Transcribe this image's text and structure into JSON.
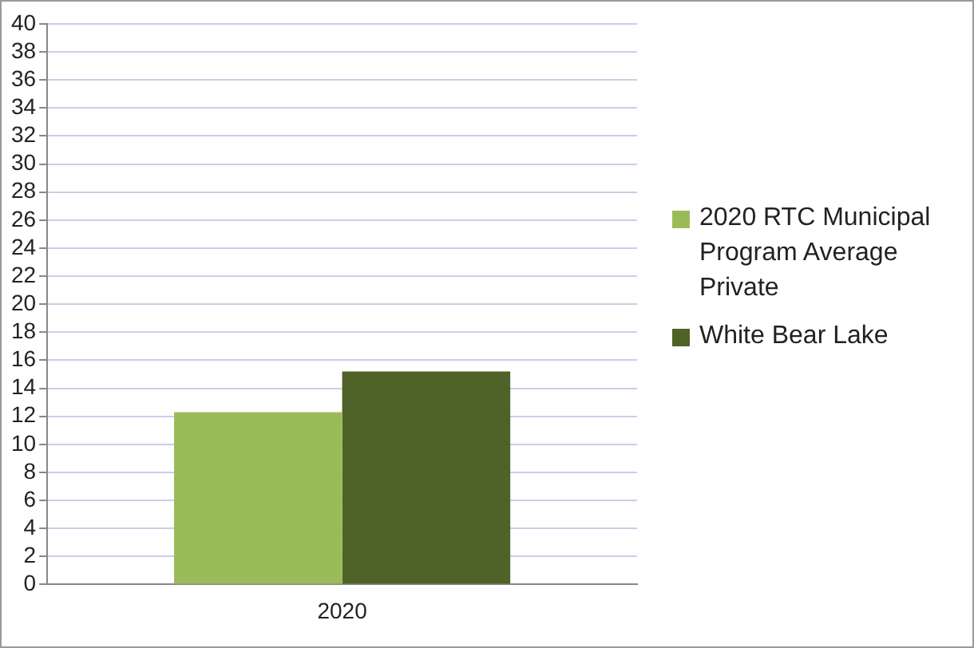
{
  "chart_data": {
    "type": "bar",
    "categories": [
      "2020"
    ],
    "series": [
      {
        "name": "2020 RTC Municipal Program Average Private",
        "color": "#9bbb59",
        "values": [
          12.3
        ]
      },
      {
        "name": "White Bear Lake",
        "color": "#4f6228",
        "values": [
          15.2
        ]
      }
    ],
    "ylim": [
      0,
      40
    ],
    "yticks": [
      0,
      2,
      4,
      6,
      8,
      10,
      12,
      14,
      16,
      18,
      20,
      22,
      24,
      26,
      28,
      30,
      32,
      34,
      36,
      38,
      40
    ],
    "grid": "y",
    "legend": "right"
  }
}
